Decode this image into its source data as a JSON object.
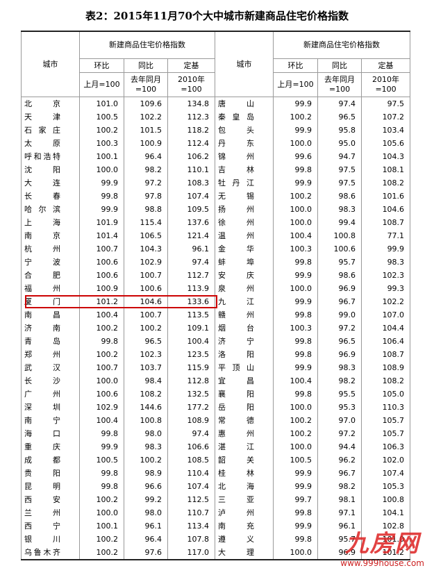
{
  "title": "表2：2015年11月70个大中城市新建商品住宅价格指数",
  "header": {
    "city": "城市",
    "group": "新建商品住宅价格指数",
    "columns": [
      {
        "name": "环比",
        "base": "上月=100"
      },
      {
        "name": "同比",
        "base": "去年同月=100"
      },
      {
        "name": "定基",
        "base": "2010年=100"
      }
    ]
  },
  "rows_left": [
    [
      "北京",
      "101.0",
      "109.6",
      "134.8"
    ],
    [
      "天津",
      "100.5",
      "102.2",
      "112.3"
    ],
    [
      "石家庄",
      "100.2",
      "101.5",
      "118.2"
    ],
    [
      "太原",
      "100.3",
      "100.9",
      "112.4"
    ],
    [
      "呼和浩特",
      "100.1",
      "96.4",
      "106.2"
    ],
    [
      "沈阳",
      "100.0",
      "98.2",
      "110.1"
    ],
    [
      "大连",
      "99.9",
      "97.2",
      "108.3"
    ],
    [
      "长春",
      "99.8",
      "97.8",
      "107.4"
    ],
    [
      "哈尔滨",
      "99.9",
      "98.8",
      "109.5"
    ],
    [
      "上海",
      "101.9",
      "115.4",
      "137.6"
    ],
    [
      "南京",
      "101.4",
      "106.5",
      "121.4"
    ],
    [
      "杭州",
      "100.7",
      "104.3",
      "96.1"
    ],
    [
      "宁波",
      "100.6",
      "102.9",
      "97.4"
    ],
    [
      "合肥",
      "100.6",
      "100.7",
      "112.7"
    ],
    [
      "福州",
      "100.9",
      "100.6",
      "113.9"
    ],
    [
      "厦门",
      "101.2",
      "104.6",
      "133.6"
    ],
    [
      "南昌",
      "100.4",
      "100.7",
      "113.5"
    ],
    [
      "济南",
      "100.2",
      "100.2",
      "109.1"
    ],
    [
      "青岛",
      "99.8",
      "96.5",
      "100.4"
    ],
    [
      "郑州",
      "100.2",
      "102.3",
      "123.5"
    ],
    [
      "武汉",
      "100.7",
      "103.7",
      "115.9"
    ],
    [
      "长沙",
      "100.0",
      "98.4",
      "112.8"
    ],
    [
      "广州",
      "100.6",
      "108.2",
      "132.5"
    ],
    [
      "深圳",
      "102.9",
      "144.6",
      "177.2"
    ],
    [
      "南宁",
      "100.4",
      "100.8",
      "108.9"
    ],
    [
      "海口",
      "99.8",
      "98.0",
      "97.4"
    ],
    [
      "重庆",
      "99.9",
      "98.3",
      "106.6"
    ],
    [
      "成都",
      "100.5",
      "100.2",
      "108.5"
    ],
    [
      "贵阳",
      "99.8",
      "98.9",
      "110.4"
    ],
    [
      "昆明",
      "99.8",
      "96.6",
      "107.4"
    ],
    [
      "西安",
      "100.2",
      "99.2",
      "112.5"
    ],
    [
      "兰州",
      "100.0",
      "98.0",
      "110.7"
    ],
    [
      "西宁",
      "100.1",
      "96.1",
      "113.4"
    ],
    [
      "银川",
      "100.2",
      "96.4",
      "107.8"
    ],
    [
      "乌鲁木齐",
      "100.2",
      "97.6",
      "117.0"
    ]
  ],
  "rows_right": [
    [
      "唐山",
      "99.9",
      "97.4",
      "97.5"
    ],
    [
      "秦皇岛",
      "100.2",
      "96.5",
      "107.2"
    ],
    [
      "包头",
      "99.9",
      "95.8",
      "103.4"
    ],
    [
      "丹东",
      "100.0",
      "95.0",
      "105.6"
    ],
    [
      "锦州",
      "99.6",
      "94.7",
      "104.3"
    ],
    [
      "吉林",
      "99.8",
      "97.5",
      "108.1"
    ],
    [
      "牡丹江",
      "99.9",
      "97.5",
      "108.2"
    ],
    [
      "无锡",
      "100.2",
      "98.6",
      "101.6"
    ],
    [
      "扬州",
      "100.0",
      "98.3",
      "104.6"
    ],
    [
      "徐州",
      "100.0",
      "99.4",
      "108.7"
    ],
    [
      "温州",
      "100.4",
      "100.8",
      "77.1"
    ],
    [
      "金华",
      "100.3",
      "100.6",
      "99.9"
    ],
    [
      "蚌埠",
      "99.8",
      "95.7",
      "98.3"
    ],
    [
      "安庆",
      "99.9",
      "98.6",
      "102.3"
    ],
    [
      "泉州",
      "100.0",
      "96.9",
      "99.3"
    ],
    [
      "九江",
      "99.9",
      "96.7",
      "102.2"
    ],
    [
      "赣州",
      "99.8",
      "99.0",
      "107.0"
    ],
    [
      "烟台",
      "100.3",
      "97.2",
      "104.4"
    ],
    [
      "济宁",
      "99.8",
      "96.5",
      "106.4"
    ],
    [
      "洛阳",
      "99.8",
      "96.9",
      "108.7"
    ],
    [
      "平顶山",
      "99.9",
      "98.3",
      "108.9"
    ],
    [
      "宜昌",
      "100.4",
      "98.2",
      "108.2"
    ],
    [
      "襄阳",
      "99.8",
      "95.5",
      "105.0"
    ],
    [
      "岳阳",
      "100.0",
      "95.3",
      "110.3"
    ],
    [
      "常德",
      "100.2",
      "97.0",
      "105.7"
    ],
    [
      "惠州",
      "100.2",
      "97.2",
      "105.7"
    ],
    [
      "湛江",
      "100.0",
      "94.4",
      "106.3"
    ],
    [
      "韶关",
      "100.5",
      "96.2",
      "102.0"
    ],
    [
      "桂林",
      "99.9",
      "96.7",
      "107.4"
    ],
    [
      "北海",
      "99.9",
      "98.2",
      "105.3"
    ],
    [
      "三亚",
      "99.7",
      "98.1",
      "100.8"
    ],
    [
      "泸州",
      "99.8",
      "97.1",
      "104.1"
    ],
    [
      "南充",
      "99.9",
      "96.1",
      "102.8"
    ],
    [
      "遵义",
      "99.8",
      "95.7",
      "101.0"
    ],
    [
      "大理",
      "100.0",
      "96.9",
      "101.2"
    ]
  ],
  "watermark": {
    "logo": "九房网",
    "url": "www.999house.com"
  }
}
